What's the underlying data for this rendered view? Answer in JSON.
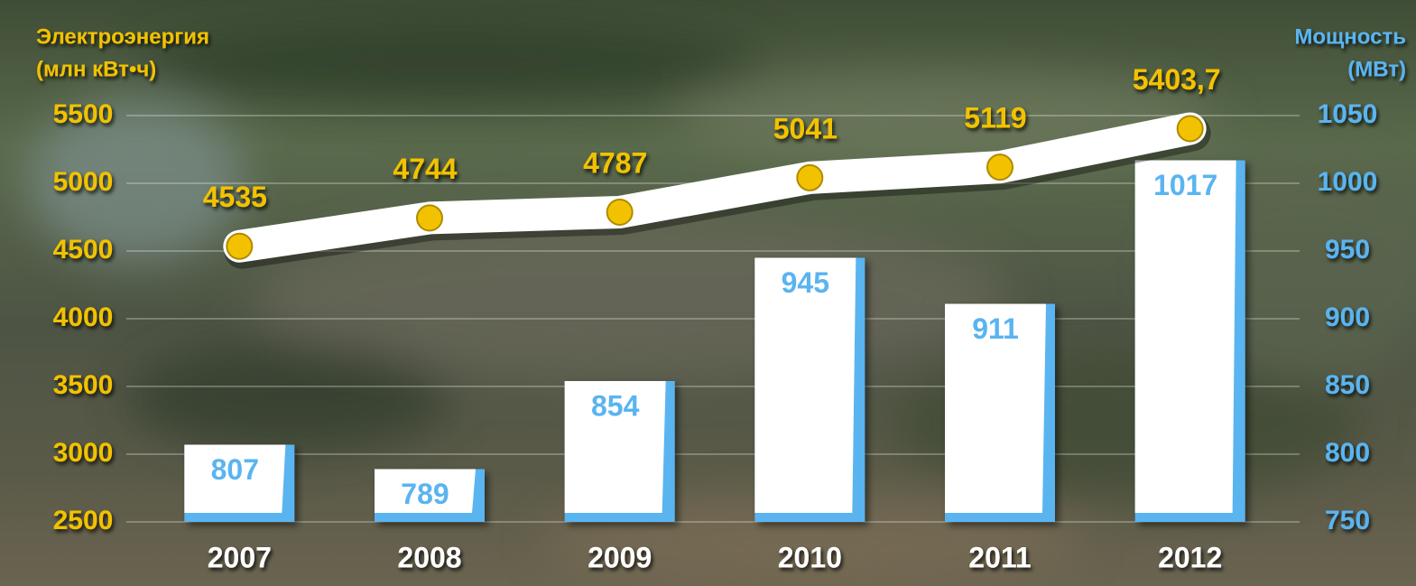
{
  "chart_data": {
    "type": "combo",
    "ylabel": [
      "Электроэнергия",
      "(млн кВт•ч)"
    ],
    "y2label": [
      "Мощность",
      "(МВт)"
    ],
    "categories": [
      "2007",
      "2008",
      "2009",
      "2010",
      "2011",
      "2012"
    ],
    "series": [
      {
        "type": "line",
        "axis": "y",
        "color": "#f2c200",
        "values": [
          4535,
          4744,
          4787,
          5041,
          5119,
          5403.7
        ],
        "value_labels": [
          "4535",
          "4744",
          "4787",
          "5041",
          "5119",
          "5403,7"
        ]
      },
      {
        "type": "bar",
        "axis": "y2",
        "color": "#5ab4f0",
        "values": [
          807,
          789,
          854,
          945,
          911,
          1017
        ]
      }
    ],
    "ylim": [
      2500,
      5500
    ],
    "yticks": [
      2500,
      3000,
      3500,
      4000,
      4500,
      5000,
      5500
    ],
    "y2lim": [
      750,
      1050
    ],
    "y2ticks": [
      750,
      800,
      850,
      900,
      950,
      1000,
      1050
    ],
    "grid": true
  }
}
